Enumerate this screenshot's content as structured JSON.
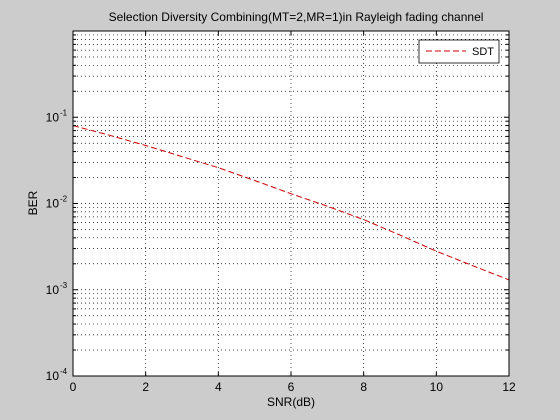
{
  "chart_data": {
    "type": "line",
    "title": "Selection Diversity Combining(MT=2,MR=1)in Rayleigh fading channel",
    "xlabel": "SNR(dB)",
    "ylabel": "BER",
    "x_scale": "linear",
    "y_scale": "log",
    "xlim": [
      0,
      12
    ],
    "ylim": [
      0.0001,
      1
    ],
    "xticks": [
      0,
      2,
      4,
      6,
      8,
      10,
      12
    ],
    "xtick_labels": [
      "0",
      "2",
      "4",
      "6",
      "8",
      "10",
      "12"
    ],
    "yticks": [
      0.0001,
      0.001,
      0.01,
      0.1
    ],
    "ytick_labels": [
      {
        "base": "10",
        "exp": "-4"
      },
      {
        "base": "10",
        "exp": "-3"
      },
      {
        "base": "10",
        "exp": "-2"
      },
      {
        "base": "10",
        "exp": "-1"
      }
    ],
    "grid": true,
    "legend_position": "top-right",
    "series": [
      {
        "name": "SDT",
        "color": "#cc0000",
        "line_style": "dashed",
        "x": [
          0,
          1,
          2,
          3,
          4,
          5,
          6,
          7,
          8,
          9,
          10,
          11,
          12
        ],
        "y": [
          0.08,
          0.062,
          0.047,
          0.035,
          0.026,
          0.0185,
          0.013,
          0.0093,
          0.0065,
          0.0043,
          0.0028,
          0.0019,
          0.0013
        ]
      }
    ]
  }
}
